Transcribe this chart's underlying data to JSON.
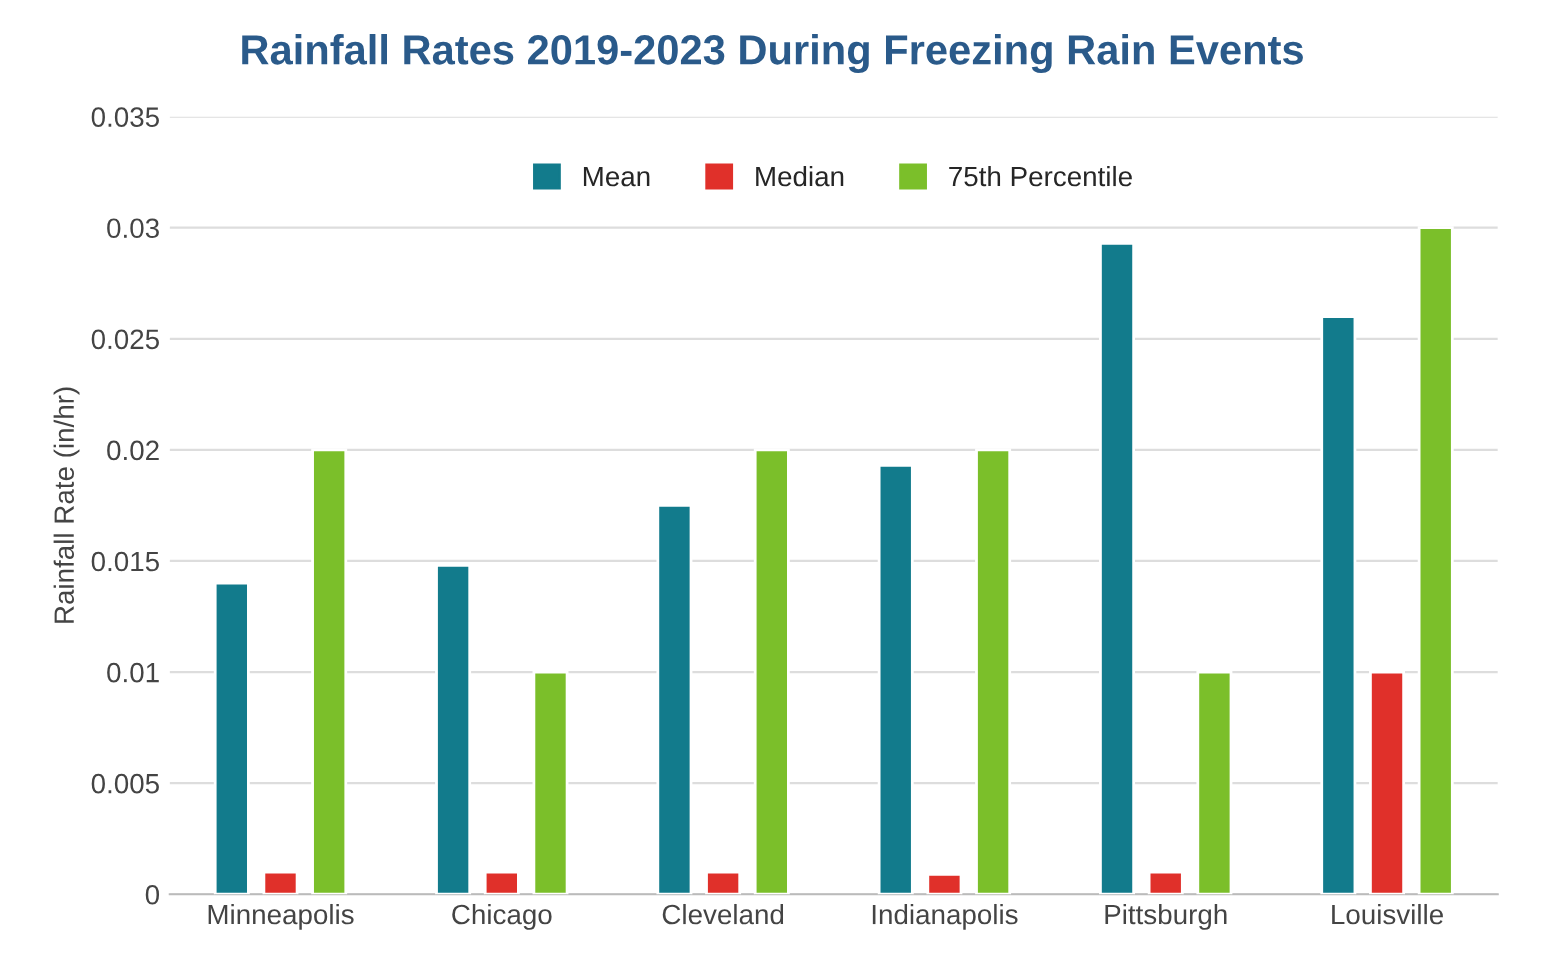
{
  "chart_data": {
    "type": "bar",
    "title": "Rainfall Rates 2019-2023 During Freezing Rain Events",
    "ylabel": "Rainfall Rate (in/hr)",
    "categories": [
      "Minneapolis",
      "Chicago",
      "Cleveland",
      "Indianapolis",
      "Pittsburgh",
      "Louisville"
    ],
    "series": [
      {
        "name": "Mean",
        "color": "#127b8c",
        "values": [
          0.014,
          0.0148,
          0.0175,
          0.0193,
          0.0293,
          0.026
        ]
      },
      {
        "name": "Median",
        "color": "#e0302a",
        "values": [
          0.001,
          0.001,
          0.001,
          0.0009,
          0.001,
          0.01
        ]
      },
      {
        "name": "75th Percentile",
        "color": "#7bbf2a",
        "values": [
          0.02,
          0.01,
          0.02,
          0.02,
          0.01,
          0.03
        ]
      }
    ],
    "ylim": [
      0,
      0.035
    ],
    "yticks": [
      {
        "value": 0,
        "label": "0"
      },
      0.005,
      0.01,
      0.015,
      0.02,
      0.025,
      0.03,
      0.035
    ],
    "grid": "y",
    "legend": "top"
  }
}
